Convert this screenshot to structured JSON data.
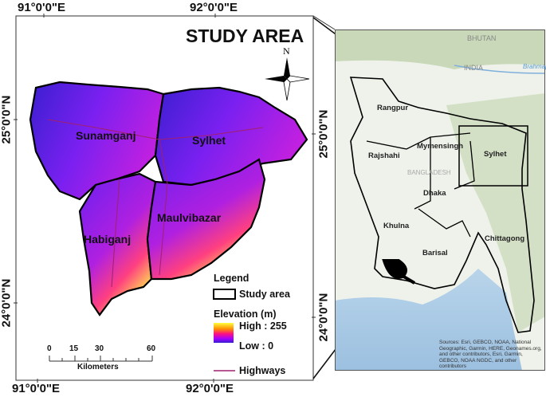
{
  "main_map": {
    "title": "STUDY AREA",
    "north_label": "N",
    "districts": [
      "Sunamganj",
      "Sylhet",
      "Habiganj",
      "Maulvibazar"
    ],
    "top_ticks": [
      "91°0'0\"E",
      "92°0'0\"E"
    ],
    "bottom_ticks": [
      "91°0'0\"E",
      "92°0'0\"E"
    ],
    "left_ticks": [
      "25°0'0\"N",
      "24°0'0\"N"
    ],
    "right_ticks": [
      "25°0'0\"N",
      "24°0'0\"N"
    ],
    "scale_bar": {
      "ticks": [
        "0",
        "15",
        "30",
        "60"
      ],
      "unit": "Kilometers"
    },
    "legend": {
      "title": "Legend",
      "study_area": "Study area",
      "elevation_title": "Elevation (m)",
      "high": "High : 255",
      "low": "Low : 0",
      "highways": "Highways",
      "highway_color": "#a0206e",
      "ramp_colors": [
        "#ffff40",
        "#ff9000",
        "#ff1080",
        "#a000ff",
        "#3020d0"
      ]
    }
  },
  "inset_map": {
    "divisions": [
      "Rangpur",
      "Rajshahi",
      "Mymensingh",
      "Sylhet",
      "Dhaka",
      "Khulna",
      "Barisal",
      "Chittagong"
    ],
    "countries": [
      "BHUTAN",
      "INDIA",
      "BANGLADESH"
    ],
    "river": "Brahmaputra",
    "attribution": "Sources: Esri, GEBCO, NOAA, National Geographic, Garmin, HERE, Geonames.org, and other contributors, Esri, Garmin, GEBCO, NOAA NGDC, and other contributors"
  }
}
